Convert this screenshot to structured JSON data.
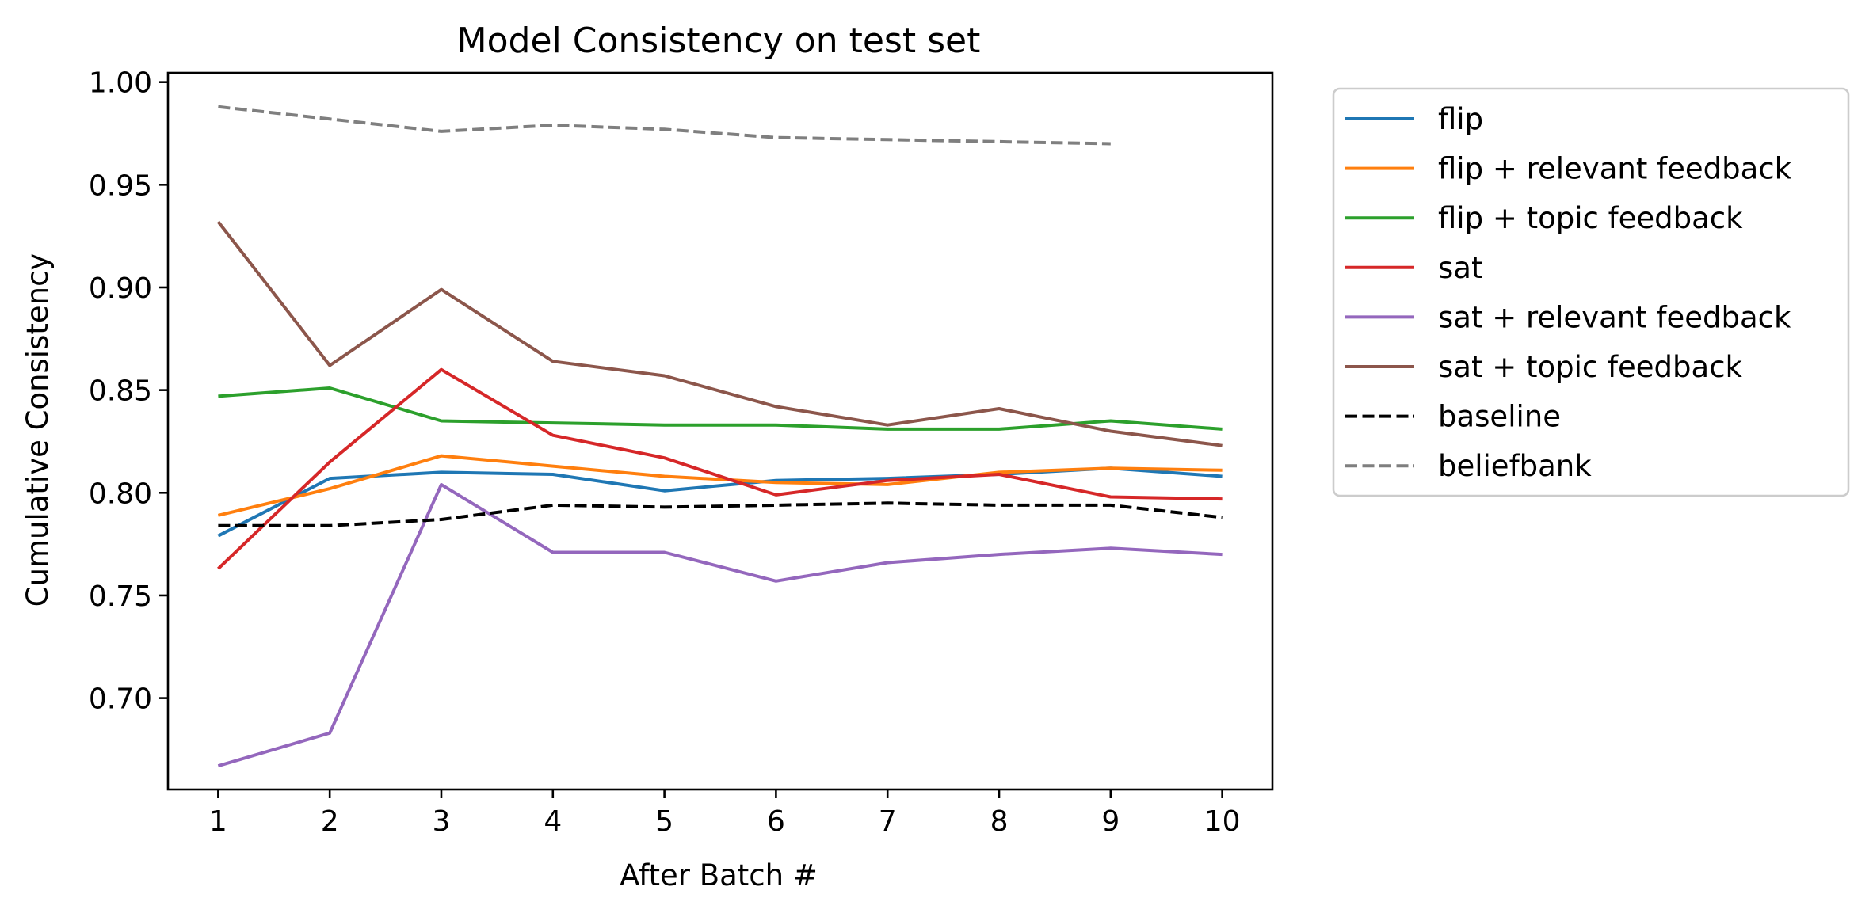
{
  "chart_data": {
    "type": "line",
    "title": "Model Consistency on test set",
    "xlabel": "After Batch #",
    "ylabel": "Cumulative Consistency",
    "x": [
      1,
      2,
      3,
      4,
      5,
      6,
      7,
      8,
      9,
      10
    ],
    "xlim": [
      0.55,
      10.45
    ],
    "ylim": [
      0.6555,
      1.0045
    ],
    "yticks": [
      "0.70",
      "0.75",
      "0.80",
      "0.85",
      "0.90",
      "0.95",
      "1.00"
    ],
    "grid": false,
    "legend_position": "outside-right-top",
    "series": [
      {
        "name": "flip",
        "color": "#1f77b4",
        "dash": "solid",
        "values": [
          0.779,
          0.807,
          0.81,
          0.809,
          0.801,
          0.806,
          0.807,
          0.809,
          0.812,
          0.808
        ]
      },
      {
        "name": "flip + relevant feedback",
        "color": "#ff7f0e",
        "dash": "solid",
        "values": [
          0.789,
          0.802,
          0.818,
          0.813,
          0.808,
          0.805,
          0.804,
          0.81,
          0.812,
          0.811
        ]
      },
      {
        "name": "flip + topic feedback",
        "color": "#2ca02c",
        "dash": "solid",
        "values": [
          0.847,
          0.851,
          0.835,
          0.834,
          0.833,
          0.833,
          0.831,
          0.831,
          0.835,
          0.831
        ]
      },
      {
        "name": "sat",
        "color": "#d62728",
        "dash": "solid",
        "values": [
          0.763,
          0.815,
          0.86,
          0.828,
          0.817,
          0.799,
          0.806,
          0.809,
          0.798,
          0.797
        ]
      },
      {
        "name": "sat + relevant feedback",
        "color": "#9467bd",
        "dash": "solid",
        "values": [
          0.667,
          0.683,
          0.804,
          0.771,
          0.771,
          0.757,
          0.766,
          0.77,
          0.773,
          0.77
        ]
      },
      {
        "name": "sat + topic feedback",
        "color": "#8c564b",
        "dash": "solid",
        "values": [
          0.932,
          0.862,
          0.899,
          0.864,
          0.857,
          0.842,
          0.833,
          0.841,
          0.83,
          0.823
        ]
      },
      {
        "name": "baseline",
        "color": "#000000",
        "dash": "dashed",
        "values": [
          0.784,
          0.784,
          0.787,
          0.794,
          0.793,
          0.794,
          0.795,
          0.794,
          0.794,
          0.788
        ]
      },
      {
        "name": "beliefbank",
        "color": "#7f7f7f",
        "dash": "dashed",
        "values": [
          0.988,
          0.982,
          0.976,
          0.979,
          0.977,
          0.973,
          0.972,
          0.971,
          0.97,
          null
        ]
      }
    ]
  }
}
